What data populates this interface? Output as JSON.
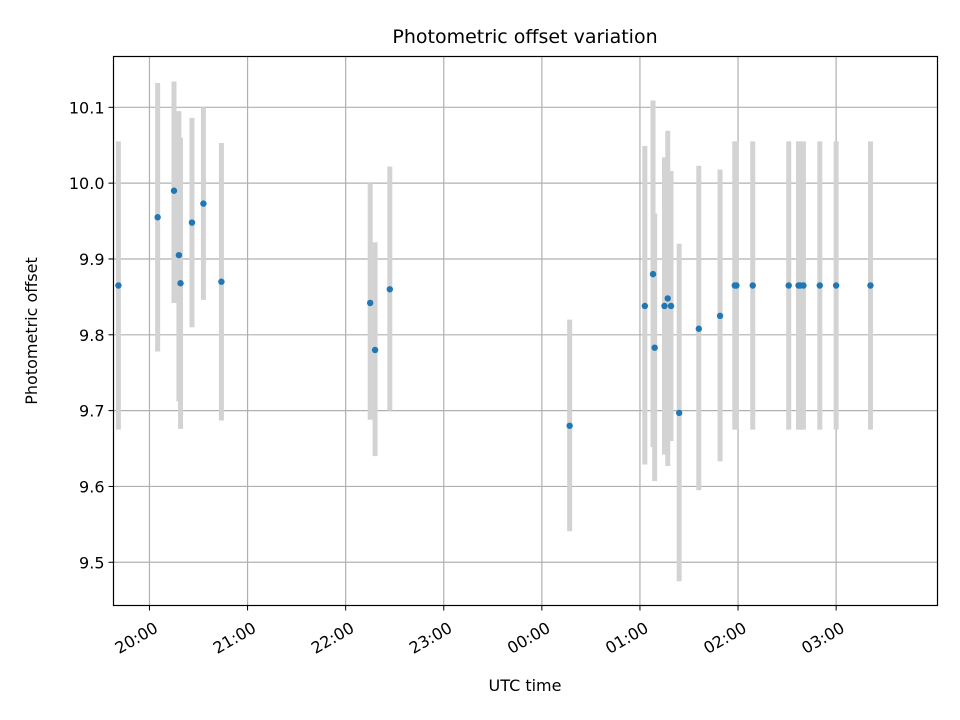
{
  "chart_data": {
    "type": "scatter",
    "title": "Photometric offset variation",
    "xlabel": "UTC time",
    "ylabel": "Photometric offset",
    "grid": true,
    "colors": {
      "points": "#1f77b4",
      "errorbars": "#d3d3d3",
      "grid": "#b0b0b0"
    },
    "xlim": [
      "19:38",
      "04:02"
    ],
    "ylim": [
      9.443,
      10.167
    ],
    "x_ticks": [
      "20:00",
      "21:00",
      "22:00",
      "23:00",
      "00:00",
      "01:00",
      "02:00",
      "03:00"
    ],
    "y_ticks": [
      "9.5",
      "9.6",
      "9.7",
      "9.8",
      "9.9",
      "10.0",
      "10.1"
    ],
    "series": [
      {
        "points": [
          {
            "x": "19:41",
            "y": 9.865,
            "ylo": 9.675,
            "yhi": 10.055
          },
          {
            "x": "20:05",
            "y": 9.955,
            "ylo": 9.778,
            "yhi": 10.132
          },
          {
            "x": "20:15",
            "y": 9.99,
            "ylo": 9.842,
            "yhi": 10.134
          },
          {
            "x": "20:18",
            "y": 9.905,
            "ylo": 9.712,
            "yhi": 10.095
          },
          {
            "x": "20:19",
            "y": 9.868,
            "ylo": 9.676,
            "yhi": 10.06
          },
          {
            "x": "20:26",
            "y": 9.948,
            "ylo": 9.81,
            "yhi": 10.086
          },
          {
            "x": "20:33",
            "y": 9.973,
            "ylo": 9.846,
            "yhi": 10.1
          },
          {
            "x": "20:44",
            "y": 9.87,
            "ylo": 9.687,
            "yhi": 10.053
          },
          {
            "x": "22:15",
            "y": 9.842,
            "ylo": 9.688,
            "yhi": 10.0
          },
          {
            "x": "22:18",
            "y": 9.78,
            "ylo": 9.64,
            "yhi": 9.922
          },
          {
            "x": "22:27",
            "y": 9.86,
            "ylo": 9.7,
            "yhi": 10.022
          },
          {
            "x": "00:17",
            "y": 9.68,
            "ylo": 9.541,
            "yhi": 9.82
          },
          {
            "x": "01:03",
            "y": 9.838,
            "ylo": 9.629,
            "yhi": 10.049
          },
          {
            "x": "01:08",
            "y": 9.88,
            "ylo": 9.652,
            "yhi": 10.109
          },
          {
            "x": "01:09",
            "y": 9.783,
            "ylo": 9.607,
            "yhi": 9.96
          },
          {
            "x": "01:15",
            "y": 9.838,
            "ylo": 9.642,
            "yhi": 10.034
          },
          {
            "x": "01:17",
            "y": 9.848,
            "ylo": 9.627,
            "yhi": 10.069
          },
          {
            "x": "01:19",
            "y": 9.838,
            "ylo": 9.66,
            "yhi": 10.016
          },
          {
            "x": "01:24",
            "y": 9.697,
            "ylo": 9.475,
            "yhi": 9.92
          },
          {
            "x": "01:36",
            "y": 9.808,
            "ylo": 9.595,
            "yhi": 10.023
          },
          {
            "x": "01:49",
            "y": 9.825,
            "ylo": 9.633,
            "yhi": 10.018
          },
          {
            "x": "01:58",
            "y": 9.865,
            "ylo": 9.675,
            "yhi": 10.055
          },
          {
            "x": "01:59",
            "y": 9.865,
            "ylo": 9.675,
            "yhi": 10.055
          },
          {
            "x": "02:09",
            "y": 9.865,
            "ylo": 9.675,
            "yhi": 10.055
          },
          {
            "x": "02:31",
            "y": 9.865,
            "ylo": 9.675,
            "yhi": 10.055
          },
          {
            "x": "02:37",
            "y": 9.865,
            "ylo": 9.675,
            "yhi": 10.055
          },
          {
            "x": "02:38",
            "y": 9.865,
            "ylo": 9.675,
            "yhi": 10.055
          },
          {
            "x": "02:40",
            "y": 9.865,
            "ylo": 9.675,
            "yhi": 10.055
          },
          {
            "x": "02:50",
            "y": 9.865,
            "ylo": 9.675,
            "yhi": 10.055
          },
          {
            "x": "03:00",
            "y": 9.865,
            "ylo": 9.675,
            "yhi": 10.055
          },
          {
            "x": "03:21",
            "y": 9.865,
            "ylo": 9.675,
            "yhi": 10.055
          }
        ]
      }
    ]
  }
}
